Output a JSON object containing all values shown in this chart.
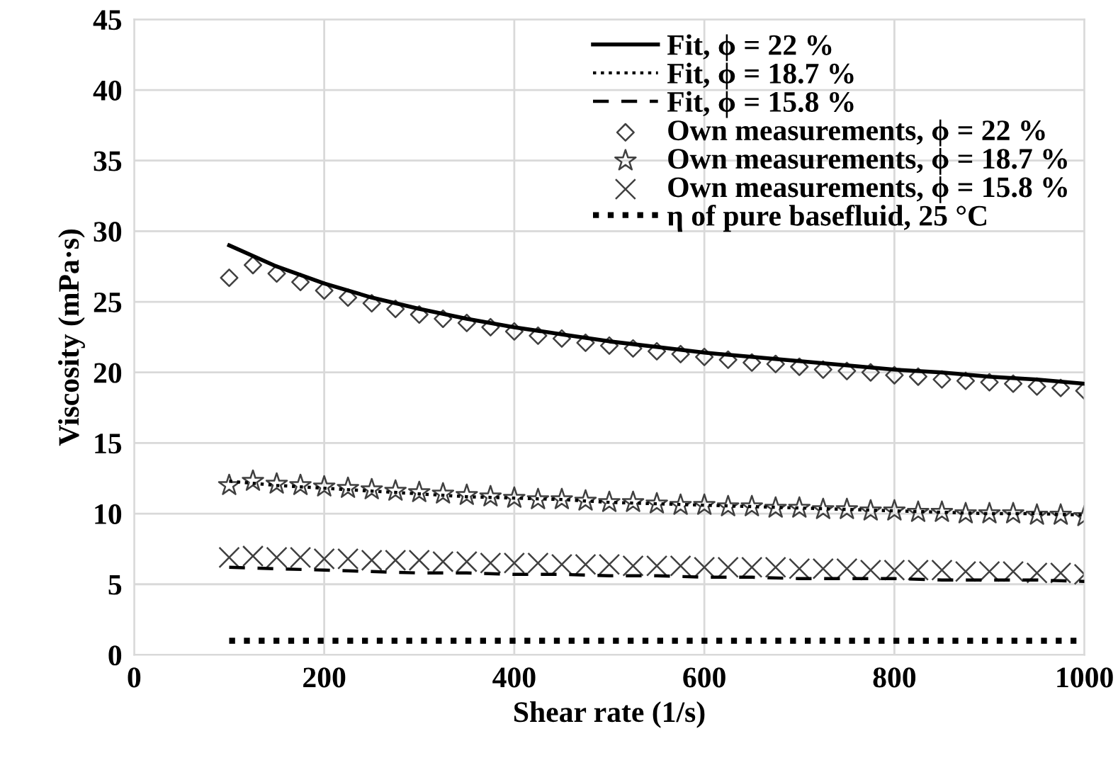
{
  "chart_data": {
    "type": "line",
    "xlabel": "Shear rate (1/s)",
    "ylabel": "Viscosity (mPa·s)",
    "xlim": [
      0,
      1000
    ],
    "xticks": [
      0,
      200,
      400,
      600,
      800,
      1000
    ],
    "ylim": [
      0,
      45
    ],
    "yticks": [
      0,
      5,
      10,
      15,
      20,
      25,
      30,
      35,
      40,
      45
    ],
    "grid": true,
    "legend": "top right",
    "x": [
      100,
      125,
      150,
      175,
      200,
      225,
      250,
      275,
      300,
      325,
      350,
      375,
      400,
      425,
      450,
      475,
      500,
      525,
      550,
      575,
      600,
      625,
      650,
      675,
      700,
      725,
      750,
      775,
      800,
      825,
      850,
      875,
      900,
      925,
      950,
      975,
      1000
    ],
    "series": [
      {
        "name": "Fit, ϕ = 22 %",
        "color": "#000000",
        "line_style": "solid",
        "marker": "none",
        "x": [
          100,
          150,
          200,
          250,
          300,
          350,
          400,
          450,
          500,
          550,
          600,
          650,
          700,
          750,
          800,
          850,
          900,
          950,
          1000
        ],
        "values": [
          29.0,
          27.5,
          26.3,
          25.3,
          24.5,
          23.8,
          23.2,
          22.7,
          22.2,
          21.8,
          21.4,
          21.1,
          20.8,
          20.5,
          20.2,
          20.0,
          19.7,
          19.5,
          19.2
        ]
      },
      {
        "name": "Fit, ϕ = 18.7 %",
        "color": "#000000",
        "line_style": "dotted",
        "marker": "none",
        "x": [
          100,
          150,
          200,
          250,
          300,
          350,
          400,
          450,
          500,
          550,
          600,
          650,
          700,
          750,
          800,
          850,
          900,
          950,
          1000
        ],
        "values": [
          12.3,
          12.0,
          11.8,
          11.6,
          11.4,
          11.2,
          11.1,
          11.0,
          10.8,
          10.7,
          10.6,
          10.5,
          10.4,
          10.3,
          10.2,
          10.1,
          10.0,
          10.0,
          9.9
        ]
      },
      {
        "name": "Fit, ϕ = 15.8 %",
        "color": "#000000",
        "line_style": "dashed",
        "marker": "none",
        "x": [
          100,
          150,
          200,
          250,
          300,
          350,
          400,
          450,
          500,
          550,
          600,
          650,
          700,
          750,
          800,
          850,
          900,
          950,
          1000
        ],
        "values": [
          6.2,
          6.1,
          6.0,
          5.9,
          5.8,
          5.8,
          5.7,
          5.7,
          5.6,
          5.6,
          5.5,
          5.5,
          5.4,
          5.4,
          5.4,
          5.3,
          5.3,
          5.3,
          5.2
        ]
      },
      {
        "name": "Own measurements, ϕ = 22 %",
        "color": "#404040",
        "type": "scatter",
        "marker": "diamond",
        "values": [
          26.7,
          27.6,
          27.0,
          26.4,
          25.8,
          25.3,
          24.9,
          24.5,
          24.1,
          23.8,
          23.5,
          23.2,
          22.9,
          22.6,
          22.4,
          22.1,
          21.9,
          21.7,
          21.5,
          21.3,
          21.1,
          20.9,
          20.7,
          20.6,
          20.4,
          20.2,
          20.1,
          20.0,
          19.8,
          19.7,
          19.5,
          19.4,
          19.3,
          19.2,
          19.0,
          18.9,
          18.7
        ]
      },
      {
        "name": "Own measurements, ϕ = 18.7 %",
        "color": "#404040",
        "type": "scatter",
        "marker": "star",
        "values": [
          12.0,
          12.3,
          12.1,
          12.0,
          11.9,
          11.8,
          11.7,
          11.6,
          11.5,
          11.4,
          11.3,
          11.2,
          11.1,
          11.0,
          11.0,
          10.9,
          10.8,
          10.8,
          10.7,
          10.6,
          10.6,
          10.5,
          10.5,
          10.4,
          10.4,
          10.3,
          10.3,
          10.2,
          10.2,
          10.1,
          10.1,
          10.0,
          10.0,
          10.0,
          9.9,
          9.9,
          9.8
        ]
      },
      {
        "name": "Own measurements, ϕ = 15.8 %",
        "color": "#404040",
        "type": "scatter",
        "marker": "cross",
        "values": [
          6.9,
          7.0,
          6.9,
          6.9,
          6.8,
          6.8,
          6.7,
          6.7,
          6.7,
          6.6,
          6.6,
          6.5,
          6.5,
          6.5,
          6.4,
          6.4,
          6.4,
          6.3,
          6.3,
          6.3,
          6.2,
          6.2,
          6.2,
          6.2,
          6.1,
          6.1,
          6.1,
          6.0,
          6.0,
          6.0,
          6.0,
          5.9,
          5.9,
          5.9,
          5.8,
          5.8,
          5.7
        ]
      },
      {
        "name": "η of pure basefluid, 25 °C",
        "color": "#000000",
        "line_style": "dotted",
        "marker": "none",
        "x": [
          100,
          1000
        ],
        "values": [
          1.0,
          1.0
        ]
      }
    ]
  }
}
